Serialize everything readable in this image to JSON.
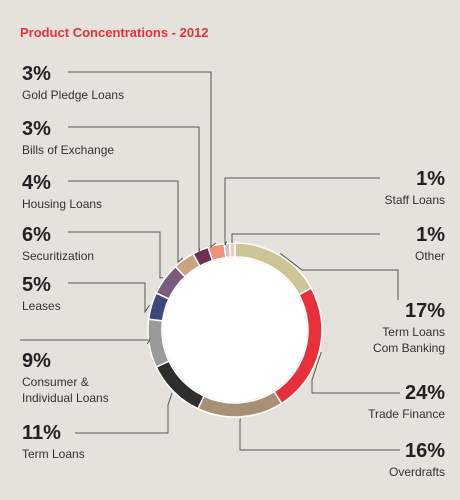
{
  "chart_data": {
    "type": "donut",
    "title": "Product Concentrations - 2012",
    "categories": [
      "Term Loans Com Banking",
      "Trade Finance",
      "Overdrafts",
      "Term Loans",
      "Consumer & Individual Loans",
      "Leases",
      "Securitization",
      "Housing Loans",
      "Bills of Exchange",
      "Gold Pledge Loans",
      "Staff Loans",
      "Other"
    ],
    "values": [
      17,
      24,
      16,
      11,
      9,
      5,
      6,
      4,
      3,
      3,
      1,
      1
    ],
    "value_labels": [
      "17%",
      "24%",
      "16%",
      "11%",
      "9%",
      "5%",
      "6%",
      "4%",
      "3%",
      "3%",
      "1%",
      "1%"
    ],
    "colors": [
      "#cdc596",
      "#e8303a",
      "#a89077",
      "#2e2e2e",
      "#9a9a9a",
      "#3b4a7a",
      "#7a5c7e",
      "#c9a57f",
      "#6e2f52",
      "#f0907a",
      "#cfc3b8",
      "#f3c6c0"
    ]
  }
}
